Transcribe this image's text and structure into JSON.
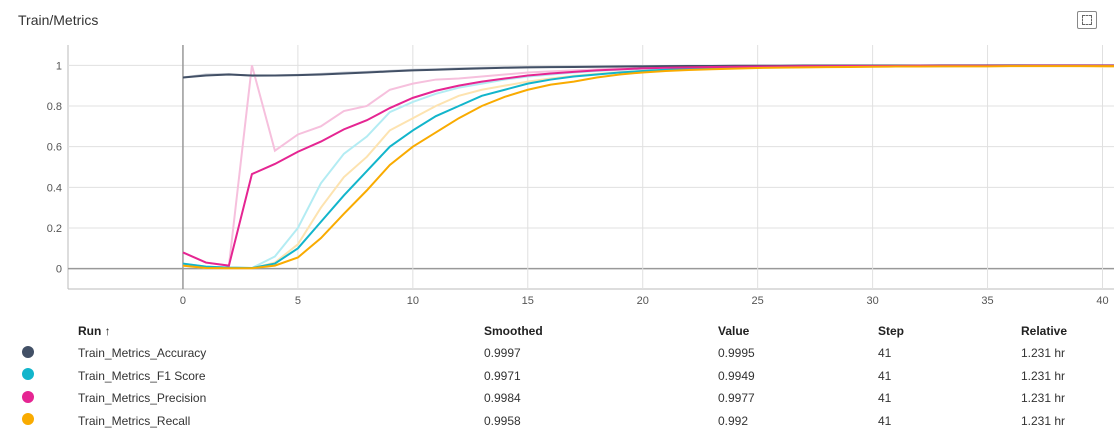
{
  "title": "Train/Metrics",
  "table": {
    "headers": {
      "run": "Run ↑",
      "smoothed": "Smoothed",
      "value": "Value",
      "step": "Step",
      "relative": "Relative"
    },
    "rows": [
      {
        "name": "Train_Metrics_Accuracy",
        "smoothed": "0.9997",
        "value": "0.9995",
        "step": "41",
        "relative": "1.231 hr",
        "color": "#425066"
      },
      {
        "name": "Train_Metrics_F1 Score",
        "smoothed": "0.9971",
        "value": "0.9949",
        "step": "41",
        "relative": "1.231 hr",
        "color": "#12b5cb"
      },
      {
        "name": "Train_Metrics_Precision",
        "smoothed": "0.9984",
        "value": "0.9977",
        "step": "41",
        "relative": "1.231 hr",
        "color": "#e52592"
      },
      {
        "name": "Train_Metrics_Recall",
        "smoothed": "0.9958",
        "value": "0.992",
        "step": "41",
        "relative": "1.231 hr",
        "color": "#f9ab00"
      }
    ]
  },
  "chart_data": {
    "type": "line",
    "title": "Train/Metrics",
    "xlabel": "",
    "ylabel": "",
    "xlim": [
      -5,
      40.5
    ],
    "ylim": [
      -0.1,
      1.1
    ],
    "xticks": [
      "0",
      "5",
      "10",
      "15",
      "20",
      "25",
      "30",
      "35",
      "40"
    ],
    "yticks": [
      "0",
      "0.2",
      "0.4",
      "0.6",
      "0.8",
      "1"
    ],
    "series": [
      {
        "name": "Train_Metrics_Accuracy",
        "color": "#425066",
        "raw_color": "#c5cad3",
        "raw": [
          0.94,
          0.955,
          0.957,
          0.948,
          0.95,
          0.953,
          0.958,
          0.964,
          0.968,
          0.973,
          0.978,
          0.981,
          0.985,
          0.988,
          0.99,
          0.992,
          0.993,
          0.994,
          0.995,
          0.996,
          0.997,
          0.997,
          0.998,
          0.998,
          0.998,
          0.999,
          0.999,
          0.999,
          0.999,
          0.999,
          0.9992,
          0.9993,
          0.9993,
          0.9994,
          0.9994,
          0.9994,
          0.9995,
          0.9995,
          0.9995,
          0.9995,
          0.9995,
          0.9995
        ],
        "smoothed": [
          0.94,
          0.95,
          0.955,
          0.95,
          0.95,
          0.952,
          0.955,
          0.96,
          0.965,
          0.97,
          0.975,
          0.978,
          0.982,
          0.985,
          0.988,
          0.99,
          0.991,
          0.992,
          0.993,
          0.994,
          0.995,
          0.996,
          0.997,
          0.997,
          0.998,
          0.998,
          0.998,
          0.999,
          0.999,
          0.999,
          0.999,
          0.9993,
          0.9994,
          0.9995,
          0.9995,
          0.9996,
          0.9996,
          0.9996,
          0.9997,
          0.9997,
          0.9997,
          0.9997
        ]
      },
      {
        "name": "Train_Metrics_F1 Score",
        "color": "#12b5cb",
        "raw_color": "#b3ecf3",
        "raw": [
          0.025,
          0.01,
          0.005,
          0.003,
          0.06,
          0.2,
          0.42,
          0.565,
          0.65,
          0.77,
          0.82,
          0.86,
          0.89,
          0.91,
          0.93,
          0.945,
          0.955,
          0.965,
          0.972,
          0.978,
          0.983,
          0.986,
          0.989,
          0.991,
          0.992,
          0.993,
          0.994,
          0.995,
          0.995,
          0.996,
          0.996,
          0.997,
          0.997,
          0.997,
          0.998,
          0.998,
          0.998,
          0.998,
          0.9985,
          0.999,
          0.995,
          0.9949
        ],
        "smoothed": [
          0.025,
          0.01,
          0.005,
          0.003,
          0.025,
          0.1,
          0.23,
          0.36,
          0.48,
          0.6,
          0.68,
          0.75,
          0.8,
          0.85,
          0.88,
          0.91,
          0.93,
          0.945,
          0.955,
          0.965,
          0.972,
          0.978,
          0.983,
          0.986,
          0.989,
          0.991,
          0.992,
          0.993,
          0.994,
          0.995,
          0.995,
          0.996,
          0.996,
          0.996,
          0.997,
          0.997,
          0.997,
          0.997,
          0.997,
          0.997,
          0.9971,
          0.9971
        ]
      },
      {
        "name": "Train_Metrics_Precision",
        "color": "#e52592",
        "raw_color": "#f6c0dd",
        "raw": [
          0.08,
          0.03,
          0.015,
          1.0,
          0.58,
          0.66,
          0.7,
          0.775,
          0.8,
          0.88,
          0.91,
          0.93,
          0.935,
          0.945,
          0.955,
          0.965,
          0.97,
          0.975,
          0.98,
          0.985,
          0.988,
          0.99,
          0.992,
          0.993,
          0.994,
          0.995,
          0.996,
          0.996,
          0.997,
          0.997,
          0.997,
          0.998,
          0.998,
          0.998,
          0.998,
          0.998,
          0.998,
          0.998,
          0.998,
          0.998,
          0.998,
          0.9977
        ],
        "smoothed": [
          0.08,
          0.03,
          0.015,
          0.465,
          0.515,
          0.575,
          0.625,
          0.685,
          0.73,
          0.79,
          0.84,
          0.875,
          0.9,
          0.92,
          0.935,
          0.95,
          0.96,
          0.968,
          0.975,
          0.98,
          0.985,
          0.988,
          0.99,
          0.992,
          0.993,
          0.994,
          0.995,
          0.996,
          0.996,
          0.997,
          0.997,
          0.997,
          0.998,
          0.998,
          0.998,
          0.998,
          0.998,
          0.9984,
          0.9984,
          0.9984,
          0.9984,
          0.9984
        ]
      },
      {
        "name": "Train_Metrics_Recall",
        "color": "#f9ab00",
        "raw_color": "#fde3b0",
        "raw": [
          0.015,
          0.003,
          0.002,
          0.002,
          0.03,
          0.12,
          0.3,
          0.45,
          0.55,
          0.68,
          0.74,
          0.8,
          0.85,
          0.88,
          0.9,
          0.92,
          0.935,
          0.948,
          0.958,
          0.966,
          0.972,
          0.977,
          0.981,
          0.984,
          0.987,
          0.989,
          0.99,
          0.991,
          0.992,
          0.993,
          0.994,
          0.995,
          0.995,
          0.996,
          0.996,
          0.996,
          0.997,
          0.997,
          0.997,
          0.996,
          0.993,
          0.992
        ],
        "smoothed": [
          0.015,
          0.003,
          0.002,
          0.002,
          0.015,
          0.055,
          0.15,
          0.27,
          0.385,
          0.51,
          0.6,
          0.67,
          0.74,
          0.8,
          0.845,
          0.88,
          0.905,
          0.92,
          0.94,
          0.955,
          0.965,
          0.972,
          0.977,
          0.981,
          0.984,
          0.987,
          0.989,
          0.99,
          0.991,
          0.992,
          0.993,
          0.994,
          0.994,
          0.995,
          0.995,
          0.995,
          0.996,
          0.996,
          0.996,
          0.996,
          0.9958,
          0.9958
        ]
      }
    ]
  }
}
